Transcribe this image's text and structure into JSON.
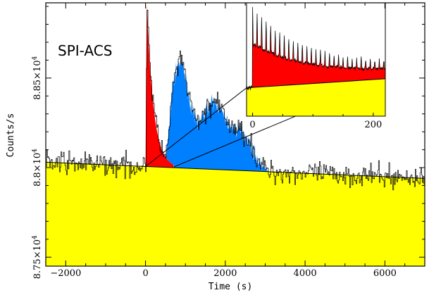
{
  "chart_data": {
    "type": "line",
    "title": "SPI-ACS",
    "xlabel": "Time (s)",
    "ylabel": "Counts/s",
    "xlim": [
      -2500,
      7000
    ],
    "ylim": [
      87450,
      88920
    ],
    "x_ticks": [
      {
        "value": -2000,
        "label": "−2000"
      },
      {
        "value": 0,
        "label": "0"
      },
      {
        "value": 2000,
        "label": "2000"
      },
      {
        "value": 4000,
        "label": "4000"
      },
      {
        "value": 6000,
        "label": "6000"
      }
    ],
    "y_ticks": [
      {
        "value": 87500,
        "mantissa": "8.75×10",
        "exp": "4"
      },
      {
        "value": 88000,
        "mantissa": "8.8×10",
        "exp": "4"
      },
      {
        "value": 88500,
        "mantissa": "8.85×10",
        "exp": "4"
      }
    ],
    "background": {
      "start": [
        -2500,
        88030
      ],
      "end": [
        7000,
        87940
      ]
    },
    "noise_amplitude": 45,
    "bin_width": 20,
    "red_component": {
      "start": 0,
      "peak_time": 30,
      "peak": 88920,
      "decay": 170,
      "end": 700
    },
    "blue_component": {
      "start": 500,
      "end": 3100,
      "peaks": [
        {
          "time": 850,
          "amp": 570,
          "width": 320
        },
        {
          "time": 1700,
          "amp": 370,
          "width": 480
        },
        {
          "time": 2450,
          "amp": 180,
          "width": 350
        }
      ]
    },
    "inset": {
      "xlim": [
        -10,
        220
      ],
      "x_ticks": [
        {
          "value": 0,
          "label": "0"
        },
        {
          "value": 200,
          "label": "200"
        }
      ],
      "level_top": 0.25,
      "level_end": 0.33
    },
    "colors": {
      "red": "#ff0000",
      "blue": "#0080ff",
      "yellow": "#ffff00",
      "line": "#000000"
    }
  }
}
